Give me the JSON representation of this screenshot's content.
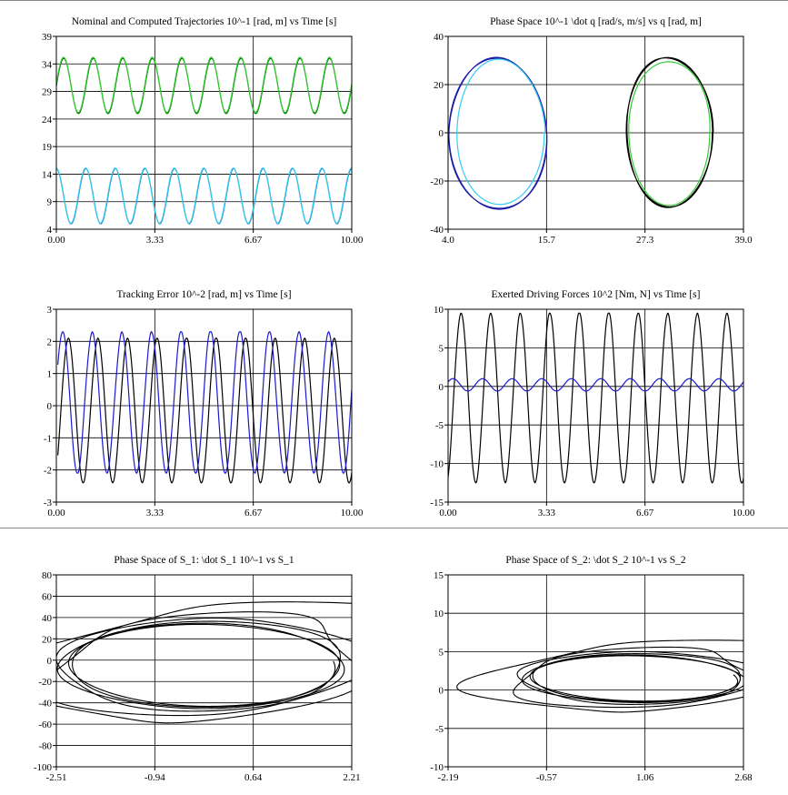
{
  "chart_data": [
    {
      "type": "line",
      "title": "Nominal and Computed Trajectories 10^-1 [rad, m]  vs Time [s]",
      "xlim": [
        0,
        10
      ],
      "ylim": [
        4,
        39
      ],
      "xticks": [
        "0.00",
        "3.33",
        "6.67",
        "10.00"
      ],
      "yticks": [
        "4",
        "9",
        "14",
        "19",
        "24",
        "29",
        "34",
        "39"
      ],
      "grid": true,
      "series": [
        {
          "color": "#006400",
          "kind": "sine",
          "offset": 30,
          "amp": 5,
          "freq": 1.0,
          "phase": 0,
          "x_range": [
            0,
            10
          ],
          "noise": 0
        },
        {
          "color": "#33cc33",
          "kind": "sine",
          "offset": 30.2,
          "amp": 5,
          "freq": 1.0,
          "phase": 0.04,
          "x_range": [
            0,
            10
          ],
          "noise": 0
        },
        {
          "color": "#1565c0",
          "kind": "sine",
          "offset": 10,
          "amp": 5,
          "freq": 1.0,
          "phase": 1.5708,
          "x_range": [
            0,
            10
          ],
          "noise": 0
        },
        {
          "color": "#33ccee",
          "kind": "sine",
          "offset": 10.1,
          "amp": 5,
          "freq": 1.0,
          "phase": 1.62,
          "x_range": [
            0,
            10
          ],
          "noise": 0
        }
      ]
    },
    {
      "type": "line",
      "title": "Phase Space 10^-1 \\dot q [rad/s, m/s] vs q [rad, m]",
      "xlim": [
        4,
        39
      ],
      "ylim": [
        -40,
        40
      ],
      "xticks": [
        "4.0",
        "15.7",
        "27.3",
        "39.0"
      ],
      "yticks": [
        "-40",
        "-20",
        "0",
        "20",
        "40"
      ],
      "grid": true,
      "series": [
        {
          "color": "#1a1aaa",
          "kind": "ellipse",
          "cx": 9.9,
          "cy": -0.6,
          "rx": 5.8,
          "ry": 31.2,
          "turns": 2,
          "tilt": 0.03
        },
        {
          "color": "#33ccee",
          "kind": "ellipse",
          "cx": 10.2,
          "cy": 0.2,
          "rx": 5.2,
          "ry": 30.0,
          "turns": 1,
          "tilt": 0
        },
        {
          "color": "#000000",
          "kind": "ellipse",
          "cx": 30.2,
          "cy": 0.3,
          "rx": 5.1,
          "ry": 31.0,
          "turns": 3,
          "tilt": 0.02
        },
        {
          "color": "#33cc33",
          "kind": "ellipse",
          "cx": 30.2,
          "cy": 0,
          "rx": 4.8,
          "ry": 30.0,
          "turns": 1,
          "tilt": 0
        }
      ]
    },
    {
      "type": "line",
      "title": "Tracking Error 10^-2 [rad, m] vs Time [s]",
      "xlim": [
        0,
        10
      ],
      "ylim": [
        -3,
        3
      ],
      "xticks": [
        "0.00",
        "3.33",
        "6.67",
        "10.00"
      ],
      "yticks": [
        "-3",
        "-2",
        "-1",
        "0",
        "1",
        "2",
        "3"
      ],
      "grid": true,
      "series": [
        {
          "color": "#000000",
          "kind": "sine",
          "offset": -0.15,
          "amp": 2.25,
          "freq": 1.0,
          "phase": -1.0,
          "x_range": [
            0.05,
            10
          ],
          "noise": 0.15
        },
        {
          "color": "#1a1acc",
          "kind": "sine",
          "offset": 0.1,
          "amp": 2.2,
          "freq": 1.0,
          "phase": 0.2,
          "x_range": [
            0.05,
            10
          ],
          "noise": 0.25
        }
      ]
    },
    {
      "type": "line",
      "title": "Exerted Driving Forces 10^2 [Nm, N] vs Time [s]",
      "xlim": [
        0,
        10
      ],
      "ylim": [
        -15,
        10
      ],
      "xticks": [
        "0.00",
        "3.33",
        "6.67",
        "10.00"
      ],
      "yticks": [
        "-15",
        "-10",
        "-5",
        "0",
        "5",
        "10"
      ],
      "grid": true,
      "series": [
        {
          "color": "#000000",
          "kind": "sine",
          "offset": -1.5,
          "amp": 11.0,
          "freq": 1.0,
          "phase": -1.2,
          "x_range": [
            0,
            10
          ],
          "noise": 0.2
        },
        {
          "color": "#1a1acc",
          "kind": "sine",
          "offset": 0.2,
          "amp": 0.8,
          "freq": 1.0,
          "phase": 0.5,
          "x_range": [
            0,
            10
          ],
          "noise": 0.1
        }
      ]
    },
    {
      "type": "line",
      "title": "Phase Space of S_1: \\dot S_1 10^-1 vs S_1",
      "xlim": [
        -2.51,
        2.21
      ],
      "ylim": [
        -100,
        80
      ],
      "xticks": [
        "-2.51",
        "-0.94",
        "0.64",
        "2.21"
      ],
      "yticks": [
        "-100",
        "-80",
        "-60",
        "-40",
        "-20",
        "0",
        "20",
        "40",
        "60",
        "80"
      ],
      "grid": true,
      "series": [
        {
          "color": "#000000",
          "kind": "orbit",
          "cx": -0.15,
          "cy": -5,
          "rx": 2.05,
          "ry": 37,
          "turns": 6,
          "tilt": -0.25,
          "transient": 1.6,
          "spread": 1.0
        }
      ]
    },
    {
      "type": "line",
      "title": "Phase Space of S_2: \\dot S_2 10^-1 vs S_2",
      "xlim": [
        -2.19,
        2.68
      ],
      "ylim": [
        -10,
        15
      ],
      "xticks": [
        "-2.19",
        "-0.57",
        "1.06",
        "2.68"
      ],
      "yticks": [
        "-10",
        "-5",
        "0",
        "5",
        "10",
        "15"
      ],
      "grid": true,
      "series": [
        {
          "color": "#000000",
          "kind": "orbit",
          "cx": 0.9,
          "cy": 1.5,
          "rx": 1.6,
          "ry": 2.8,
          "turns": 6,
          "tilt": -0.45,
          "transient": 1.7,
          "spread": 1.0
        }
      ]
    }
  ]
}
